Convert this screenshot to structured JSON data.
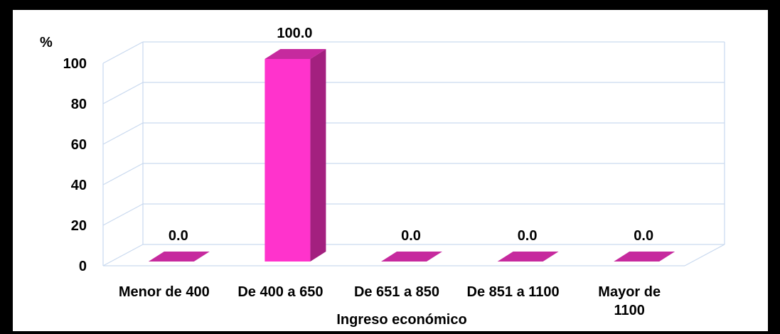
{
  "chart_data": {
    "type": "bar",
    "ylabel": "%",
    "xlabel": "Ingreso económico",
    "categories": [
      "Menor de 400",
      "De 400 a 650",
      "De 651 a 850",
      "De 851 a 1100",
      [
        "Mayor de",
        "1100"
      ]
    ],
    "values": [
      0.0,
      100.0,
      0.0,
      0.0,
      0.0
    ],
    "data_labels": [
      "0.0",
      "100.0",
      "0.0",
      "0.0",
      "0.0"
    ],
    "yticks": [
      0,
      20,
      40,
      60,
      80,
      100
    ],
    "ylim": [
      0,
      100
    ],
    "grid": true,
    "legend": "none",
    "colors": {
      "bar_front": "#ff33cc",
      "bar_side": "#a3207f",
      "bar_top": "#c62a9e",
      "grid": "#c9d9ef"
    }
  }
}
